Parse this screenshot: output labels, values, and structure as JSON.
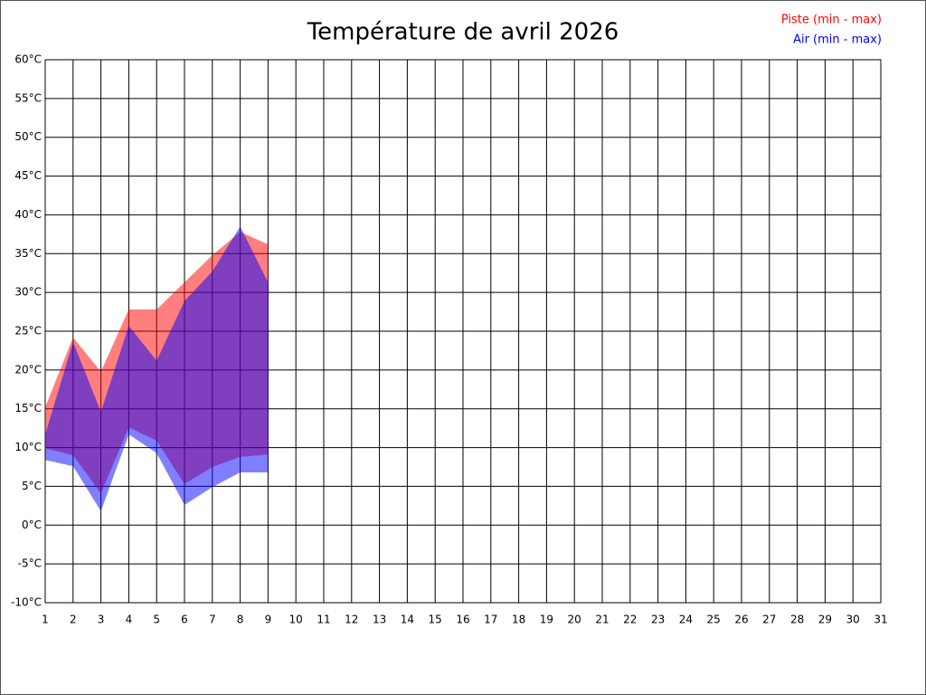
{
  "chart_data": {
    "type": "range-area",
    "title": "Température de avril 2026",
    "x": [
      1,
      2,
      3,
      4,
      5,
      6,
      7,
      8,
      9,
      10,
      11,
      12,
      13,
      14,
      15,
      16,
      17,
      18,
      19,
      20,
      21,
      22,
      23,
      24,
      25,
      26,
      27,
      28,
      29,
      30,
      31
    ],
    "series": [
      {
        "name": "Piste (min - max)",
        "color": "#ff0000",
        "low": [
          9.9,
          9.0,
          4.1,
          12.6,
          10.9,
          5.3,
          7.5,
          8.8,
          9.1,
          null,
          null,
          null,
          null,
          null,
          null,
          null,
          null,
          null,
          null,
          null,
          null,
          null,
          null,
          null,
          null,
          null,
          null,
          null,
          null,
          null,
          null
        ],
        "high": [
          15.2,
          24.2,
          19.8,
          27.8,
          27.8,
          31.3,
          34.8,
          37.8,
          36.2,
          null,
          null,
          null,
          null,
          null,
          null,
          null,
          null,
          null,
          null,
          null,
          null,
          null,
          null,
          null,
          null,
          null,
          null,
          null,
          null,
          null,
          null
        ]
      },
      {
        "name": "Air (min - max)",
        "color": "#0000ff",
        "low": [
          8.4,
          7.6,
          1.8,
          11.7,
          9.3,
          2.6,
          4.9,
          6.8,
          6.8,
          null,
          null,
          null,
          null,
          null,
          null,
          null,
          null,
          null,
          null,
          null,
          null,
          null,
          null,
          null,
          null,
          null,
          null,
          null,
          null,
          null,
          null
        ],
        "high": [
          11.7,
          23.6,
          14.6,
          25.7,
          21.2,
          28.9,
          32.7,
          38.5,
          31.3,
          null,
          null,
          null,
          null,
          null,
          null,
          null,
          null,
          null,
          null,
          null,
          null,
          null,
          null,
          null,
          null,
          null,
          null,
          null,
          null,
          null,
          null
        ]
      }
    ],
    "xlim": [
      1,
      31
    ],
    "xticks": [
      1,
      2,
      3,
      4,
      5,
      6,
      7,
      8,
      9,
      10,
      11,
      12,
      13,
      14,
      15,
      16,
      17,
      18,
      19,
      20,
      21,
      22,
      23,
      24,
      25,
      26,
      27,
      28,
      29,
      30,
      31
    ],
    "ylim": [
      -10,
      60
    ],
    "yticks": [
      {
        "value": -10,
        "label": "-10°C"
      },
      {
        "value": -5,
        "label": "-5°C"
      },
      {
        "value": 0,
        "label": "0°C"
      },
      {
        "value": 5,
        "label": "5°C"
      },
      {
        "value": 10,
        "label": "10°C"
      },
      {
        "value": 15,
        "label": "15°C"
      },
      {
        "value": 20,
        "label": "20°C"
      },
      {
        "value": 25,
        "label": "25°C"
      },
      {
        "value": 30,
        "label": "30°C"
      },
      {
        "value": 35,
        "label": "35°C"
      },
      {
        "value": 40,
        "label": "40°C"
      },
      {
        "value": 45,
        "label": "45°C"
      },
      {
        "value": 50,
        "label": "50°C"
      },
      {
        "value": 55,
        "label": "55°C"
      },
      {
        "value": 60,
        "label": "60°C"
      }
    ],
    "grid": true,
    "legend": "top-right"
  }
}
